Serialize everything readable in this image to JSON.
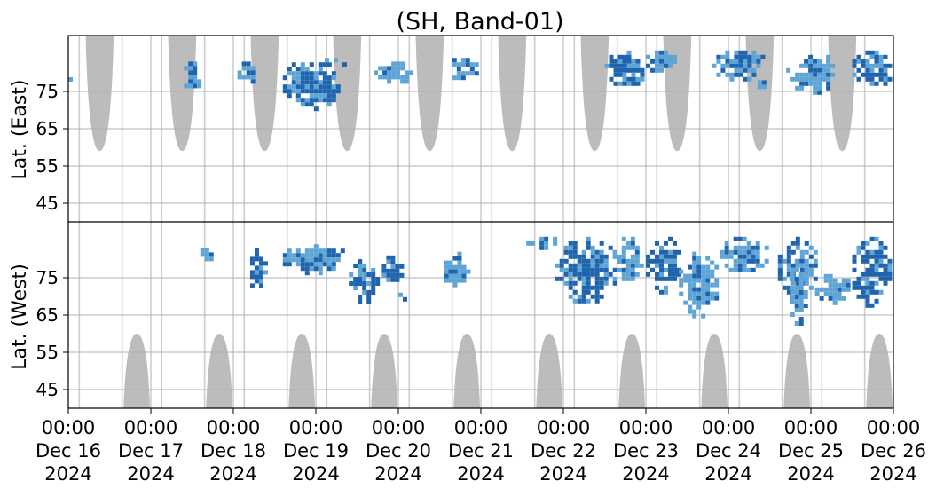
{
  "chart_data": {
    "type": "heatmap",
    "title": "(SH, Band-01)",
    "ylabel_top": "Lat. (East)",
    "ylabel_bottom": "Lat. (West)",
    "x_range_days": [
      0,
      10
    ],
    "y_ticks_top": [
      "45",
      "55",
      "65",
      "75"
    ],
    "y_ticks_bottom": [
      "75",
      "65",
      "55",
      "45"
    ],
    "x_ticks": [
      {
        "time": "00:00",
        "date": "Dec 16",
        "year": "2024"
      },
      {
        "time": "00:00",
        "date": "Dec 17",
        "year": "2024"
      },
      {
        "time": "00:00",
        "date": "Dec 18",
        "year": "2024"
      },
      {
        "time": "00:00",
        "date": "Dec 19",
        "year": "2024"
      },
      {
        "time": "00:00",
        "date": "Dec 20",
        "year": "2024"
      },
      {
        "time": "00:00",
        "date": "Dec 21",
        "year": "2024"
      },
      {
        "time": "00:00",
        "date": "Dec 22",
        "year": "2024"
      },
      {
        "time": "00:00",
        "date": "Dec 23",
        "year": "2024"
      },
      {
        "time": "00:00",
        "date": "Dec 24",
        "year": "2024"
      },
      {
        "time": "00:00",
        "date": "Dec 25",
        "year": "2024"
      },
      {
        "time": "00:00",
        "date": "Dec 26",
        "year": "2024"
      }
    ],
    "grid": true,
    "colors": {
      "data_dark": "#1f64ad",
      "data_light": "#5ea5d6",
      "coverage": "#bcbcbc",
      "grid": "#b0b0b0"
    },
    "coverage_gaps_days": [
      0.13,
      0.65,
      1.13,
      1.65,
      2.13,
      2.65,
      3.13,
      3.65,
      4.13,
      4.65,
      5.13,
      5.65,
      6.13,
      6.65,
      7.13,
      7.65,
      8.13,
      8.65,
      9.13,
      9.65
    ],
    "coverage_top_lobes": [
      {
        "center_day": 0.38,
        "half_width_day": 0.17,
        "bottom_lat": 59
      },
      {
        "center_day": 1.38,
        "half_width_day": 0.17,
        "bottom_lat": 59
      },
      {
        "center_day": 2.38,
        "half_width_day": 0.17,
        "bottom_lat": 59
      },
      {
        "center_day": 3.38,
        "half_width_day": 0.17,
        "bottom_lat": 59
      },
      {
        "center_day": 4.38,
        "half_width_day": 0.17,
        "bottom_lat": 59
      },
      {
        "center_day": 5.38,
        "half_width_day": 0.17,
        "bottom_lat": 59
      },
      {
        "center_day": 6.38,
        "half_width_day": 0.17,
        "bottom_lat": 59
      },
      {
        "center_day": 7.38,
        "half_width_day": 0.17,
        "bottom_lat": 59
      },
      {
        "center_day": 8.38,
        "half_width_day": 0.17,
        "bottom_lat": 59
      },
      {
        "center_day": 9.38,
        "half_width_day": 0.17,
        "bottom_lat": 59
      }
    ],
    "coverage_bottom_lobes": [
      {
        "center_day": 0.83,
        "half_width_day": 0.16,
        "top_lat": 60
      },
      {
        "center_day": 1.83,
        "half_width_day": 0.16,
        "top_lat": 60
      },
      {
        "center_day": 2.83,
        "half_width_day": 0.16,
        "top_lat": 60
      },
      {
        "center_day": 3.83,
        "half_width_day": 0.16,
        "top_lat": 60
      },
      {
        "center_day": 4.83,
        "half_width_day": 0.16,
        "top_lat": 60
      },
      {
        "center_day": 5.83,
        "half_width_day": 0.16,
        "top_lat": 60
      },
      {
        "center_day": 6.83,
        "half_width_day": 0.16,
        "top_lat": 60
      },
      {
        "center_day": 7.83,
        "half_width_day": 0.16,
        "top_lat": 60
      },
      {
        "center_day": 8.83,
        "half_width_day": 0.16,
        "top_lat": 60
      },
      {
        "center_day": 9.83,
        "half_width_day": 0.16,
        "top_lat": 60
      }
    ],
    "detection_clusters": [
      {
        "hemisphere": "east",
        "day_start": 0.0,
        "day_end": 0.05,
        "lat_start": 76,
        "lat_end": 80,
        "intensity": "light"
      },
      {
        "hemisphere": "east",
        "day_start": 1.4,
        "day_end": 1.6,
        "lat_start": 74,
        "lat_end": 83,
        "intensity": "mixed"
      },
      {
        "hemisphere": "west",
        "day_start": 1.6,
        "day_end": 1.75,
        "lat_start": 79,
        "lat_end": 83,
        "intensity": "light"
      },
      {
        "hemisphere": "east",
        "day_start": 2.05,
        "day_end": 2.3,
        "lat_start": 77,
        "lat_end": 83,
        "intensity": "light"
      },
      {
        "hemisphere": "west",
        "day_start": 2.15,
        "day_end": 2.4,
        "lat_start": 72,
        "lat_end": 83,
        "intensity": "dark"
      },
      {
        "hemisphere": "east",
        "day_start": 2.6,
        "day_end": 3.3,
        "lat_start": 70,
        "lat_end": 84,
        "intensity": "dark"
      },
      {
        "hemisphere": "west",
        "day_start": 2.6,
        "day_end": 3.4,
        "lat_start": 76,
        "lat_end": 84,
        "intensity": "mixed"
      },
      {
        "hemisphere": "east",
        "day_start": 3.0,
        "day_end": 3.45,
        "lat_start": 82,
        "lat_end": 84,
        "intensity": "light"
      },
      {
        "hemisphere": "west",
        "day_start": 3.4,
        "day_end": 3.8,
        "lat_start": 68,
        "lat_end": 80,
        "intensity": "dark"
      },
      {
        "hemisphere": "east",
        "day_start": 3.7,
        "day_end": 4.2,
        "lat_start": 77,
        "lat_end": 83,
        "intensity": "light"
      },
      {
        "hemisphere": "west",
        "day_start": 3.8,
        "day_end": 4.05,
        "lat_start": 73,
        "lat_end": 81,
        "intensity": "dark"
      },
      {
        "hemisphere": "west",
        "day_start": 4.0,
        "day_end": 4.15,
        "lat_start": 69,
        "lat_end": 71,
        "intensity": "dark"
      },
      {
        "hemisphere": "west",
        "day_start": 4.5,
        "day_end": 4.85,
        "lat_start": 72,
        "lat_end": 82,
        "intensity": "light"
      },
      {
        "hemisphere": "east",
        "day_start": 4.6,
        "day_end": 5.0,
        "lat_start": 78,
        "lat_end": 84,
        "intensity": "light"
      },
      {
        "hemisphere": "west",
        "day_start": 5.55,
        "day_end": 6.0,
        "lat_start": 83,
        "lat_end": 86,
        "intensity": "mixed"
      },
      {
        "hemisphere": "west",
        "day_start": 5.9,
        "day_end": 6.7,
        "lat_start": 68,
        "lat_end": 86,
        "intensity": "dark"
      },
      {
        "hemisphere": "east",
        "day_start": 6.5,
        "day_end": 7.0,
        "lat_start": 76,
        "lat_end": 86,
        "intensity": "dark"
      },
      {
        "hemisphere": "west",
        "day_start": 6.6,
        "day_end": 7.0,
        "lat_start": 74,
        "lat_end": 86,
        "intensity": "light"
      },
      {
        "hemisphere": "east",
        "day_start": 7.0,
        "day_end": 7.4,
        "lat_start": 80,
        "lat_end": 86,
        "intensity": "light"
      },
      {
        "hemisphere": "west",
        "day_start": 7.0,
        "day_end": 7.45,
        "lat_start": 71,
        "lat_end": 86,
        "intensity": "dark"
      },
      {
        "hemisphere": "west",
        "day_start": 7.4,
        "day_end": 7.9,
        "lat_start": 64,
        "lat_end": 82,
        "intensity": "light"
      },
      {
        "hemisphere": "east",
        "day_start": 7.8,
        "day_end": 8.5,
        "lat_start": 78,
        "lat_end": 86,
        "intensity": "mixed"
      },
      {
        "hemisphere": "west",
        "day_start": 7.9,
        "day_end": 8.5,
        "lat_start": 76,
        "lat_end": 86,
        "intensity": "light"
      },
      {
        "hemisphere": "east",
        "day_start": 8.3,
        "day_end": 8.5,
        "lat_start": 76,
        "lat_end": 78,
        "intensity": "dark"
      },
      {
        "hemisphere": "west",
        "day_start": 8.6,
        "day_end": 9.1,
        "lat_start": 70,
        "lat_end": 86,
        "intensity": "mixed"
      },
      {
        "hemisphere": "east",
        "day_start": 8.7,
        "day_end": 9.3,
        "lat_start": 74,
        "lat_end": 86,
        "intensity": "light"
      },
      {
        "hemisphere": "west",
        "day_start": 8.75,
        "day_end": 8.95,
        "lat_start": 62,
        "lat_end": 80,
        "intensity": "light"
      },
      {
        "hemisphere": "west",
        "day_start": 9.05,
        "day_end": 9.5,
        "lat_start": 68,
        "lat_end": 76,
        "intensity": "light"
      },
      {
        "hemisphere": "east",
        "day_start": 9.5,
        "day_end": 10.0,
        "lat_start": 76,
        "lat_end": 86,
        "intensity": "dark"
      },
      {
        "hemisphere": "west",
        "day_start": 9.5,
        "day_end": 10.0,
        "lat_start": 67,
        "lat_end": 86,
        "intensity": "dark"
      }
    ]
  }
}
